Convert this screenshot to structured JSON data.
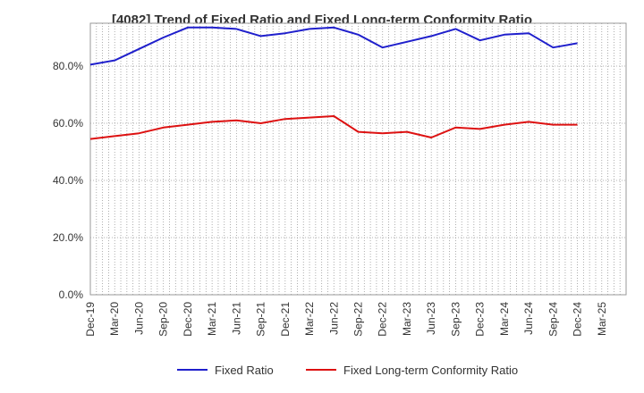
{
  "chart_data": {
    "type": "line",
    "title": "[4082]  Trend of Fixed Ratio and Fixed Long-term Conformity Ratio",
    "xlabel": "",
    "ylabel": "",
    "ylim": [
      0,
      95
    ],
    "y_ticks": [
      "0.0%",
      "20.0%",
      "40.0%",
      "60.0%",
      "80.0%"
    ],
    "y_tick_values": [
      0,
      20,
      40,
      60,
      80
    ],
    "x_tick_labels": [
      "Dec-19",
      "Mar-20",
      "Jun-20",
      "Sep-20",
      "Dec-20",
      "Mar-21",
      "Jun-21",
      "Sep-21",
      "Dec-21",
      "Mar-22",
      "Jun-22",
      "Sep-22",
      "Dec-22",
      "Mar-23",
      "Jun-23",
      "Sep-23",
      "Dec-23",
      "Mar-24",
      "Jun-24",
      "Sep-24",
      "Dec-24",
      "Mar-25"
    ],
    "categories": [
      "Dec-19",
      "Mar-20",
      "Jun-20",
      "Sep-20",
      "Dec-20",
      "Mar-21",
      "Jun-21",
      "Sep-21",
      "Dec-21",
      "Mar-22",
      "Jun-22",
      "Sep-22",
      "Dec-22",
      "Mar-23",
      "Jun-23",
      "Sep-23",
      "Dec-23",
      "Mar-24",
      "Jun-24",
      "Sep-24",
      "Dec-24"
    ],
    "grid": "dotted",
    "legend_position": "bottom",
    "series": [
      {
        "name": "Fixed Ratio",
        "color": "#1f1fcc",
        "values": [
          80.5,
          82.0,
          86.0,
          90.0,
          93.5,
          93.5,
          93.0,
          90.5,
          91.5,
          93.0,
          93.5,
          91.0,
          86.5,
          88.5,
          90.5,
          93.0,
          89.0,
          91.0,
          91.5,
          86.5,
          88.0
        ]
      },
      {
        "name": "Fixed Long-term Conformity Ratio",
        "color": "#dd1111",
        "values": [
          54.5,
          55.5,
          56.5,
          58.5,
          59.5,
          60.5,
          61.0,
          60.0,
          61.5,
          62.0,
          62.5,
          57.0,
          56.5,
          57.0,
          55.0,
          58.5,
          58.0,
          59.5,
          60.5,
          59.5,
          59.5
        ]
      }
    ]
  }
}
